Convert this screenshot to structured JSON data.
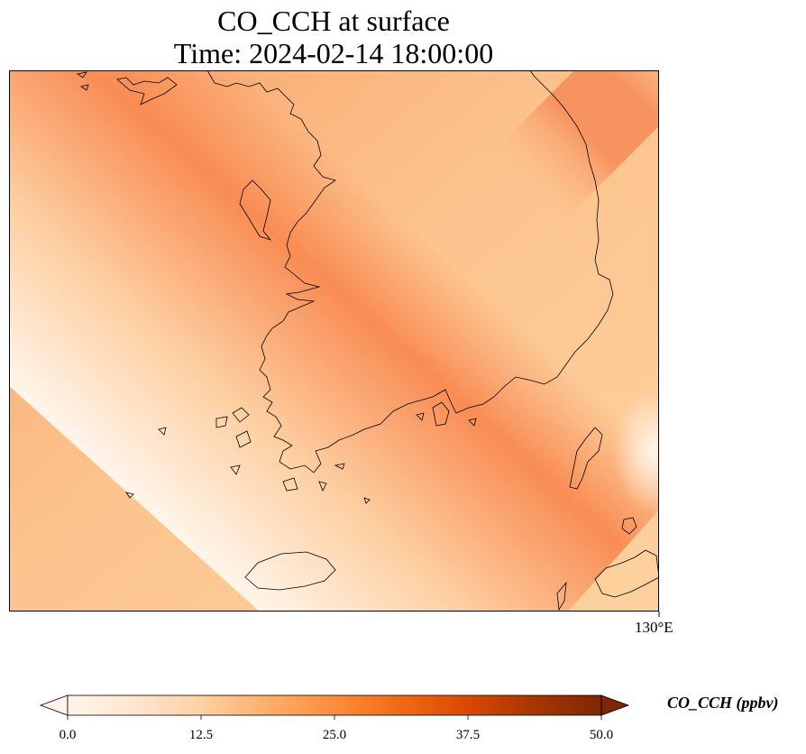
{
  "title": {
    "line1": "CO_CCH at surface",
    "line2": "Time: 2024-02-14 18:00:00"
  },
  "axes": {
    "x_tick_labels": [
      "130°E"
    ]
  },
  "colorbar": {
    "label": "CO_CCH (ppbv)",
    "colormap": "Oranges",
    "min": 0.0,
    "max": 50.0,
    "extend": "both",
    "ticks": [
      "0.0",
      "12.5",
      "25.0",
      "37.5",
      "50.0"
    ],
    "colors": [
      "#fff5eb",
      "#fee6ce",
      "#fdd0a2",
      "#fdae6b",
      "#fd8d3c",
      "#f16913",
      "#d94801",
      "#a63603",
      "#7f2704"
    ]
  }
}
